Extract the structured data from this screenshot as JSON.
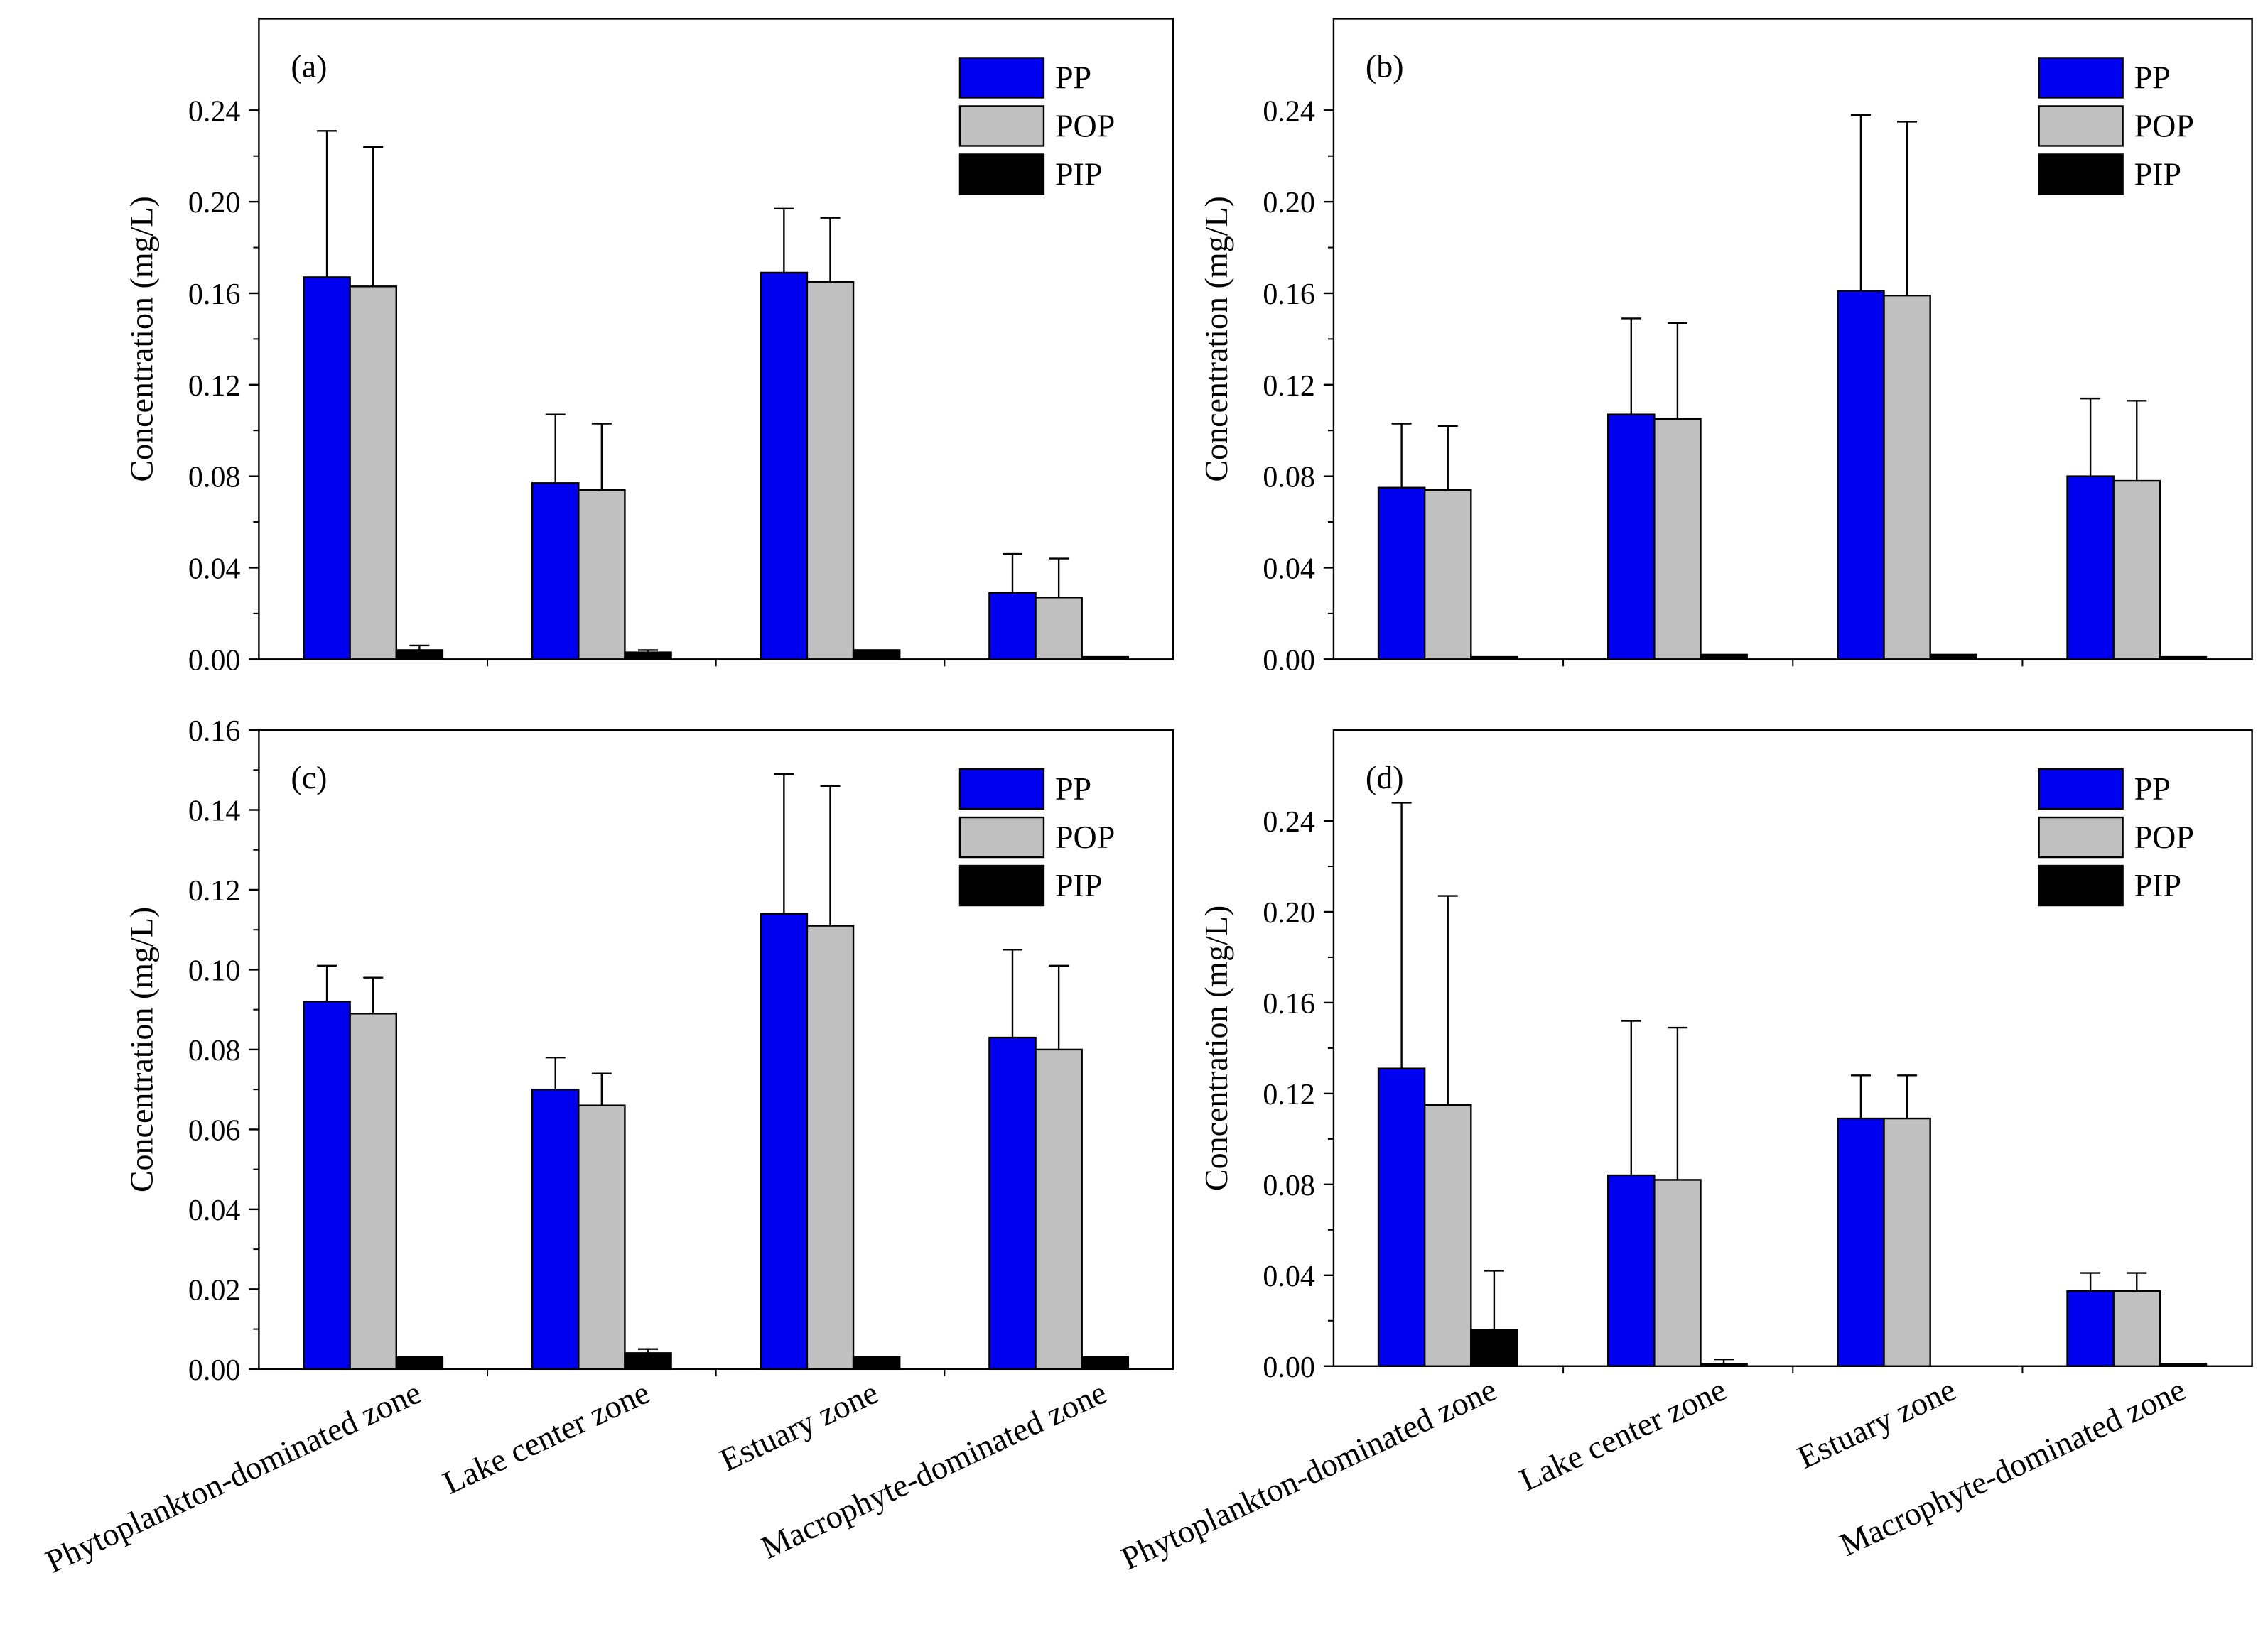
{
  "colors": {
    "PP": "#0000f0",
    "POP": "#c0c0c0",
    "PIP": "#000000",
    "axis": "#000000",
    "background": "#ffffff"
  },
  "chart_data": [
    {
      "type": "bar",
      "panel": "(a)",
      "ylabel": "Concentration (mg/L)",
      "ylim": [
        0,
        0.28
      ],
      "yticks": [
        "0.00",
        "0.04",
        "0.08",
        "0.12",
        "0.16",
        "0.20",
        "0.24"
      ],
      "legend": "top-right",
      "categories": [
        "Phytoplankton-dominated zone",
        "Lake center zone",
        "Estuary zone",
        "Macrophyte-dominated zone"
      ],
      "series": [
        {
          "name": "PP",
          "values": [
            0.167,
            0.077,
            0.169,
            0.029
          ],
          "errors": [
            0.064,
            0.03,
            0.028,
            0.017
          ]
        },
        {
          "name": "POP",
          "values": [
            0.163,
            0.074,
            0.165,
            0.027
          ],
          "errors": [
            0.061,
            0.029,
            0.028,
            0.017
          ]
        },
        {
          "name": "PIP",
          "values": [
            0.004,
            0.003,
            0.004,
            0.001
          ],
          "errors": [
            0.002,
            0.001,
            0.0,
            0.0
          ]
        }
      ]
    },
    {
      "type": "bar",
      "panel": "(b)",
      "ylabel": "Concentration (mg/L)",
      "ylim": [
        0,
        0.28
      ],
      "yticks": [
        "0.00",
        "0.04",
        "0.08",
        "0.12",
        "0.16",
        "0.20",
        "0.24"
      ],
      "legend": "top-right",
      "categories": [
        "Phytoplankton-dominated zone",
        "Lake center zone",
        "Estuary zone",
        "Macrophyte-dominated zone"
      ],
      "series": [
        {
          "name": "PP",
          "values": [
            0.075,
            0.107,
            0.161,
            0.08
          ],
          "errors": [
            0.028,
            0.042,
            0.077,
            0.034
          ]
        },
        {
          "name": "POP",
          "values": [
            0.074,
            0.105,
            0.159,
            0.078
          ],
          "errors": [
            0.028,
            0.042,
            0.076,
            0.035
          ]
        },
        {
          "name": "PIP",
          "values": [
            0.001,
            0.002,
            0.002,
            0.001
          ],
          "errors": [
            0.0,
            0.0,
            0.0,
            0.0
          ]
        }
      ]
    },
    {
      "type": "bar",
      "panel": "(c)",
      "ylabel": "Concentration (mg/L)",
      "ylim": [
        0,
        0.16
      ],
      "yticks": [
        "0.00",
        "0.02",
        "0.04",
        "0.06",
        "0.08",
        "0.10",
        "0.12",
        "0.14",
        "0.16"
      ],
      "legend": "top-right",
      "categories": [
        "Phytoplankton-dominated zone",
        "Lake center zone",
        "Estuary zone",
        "Macrophyte-dominated zone"
      ],
      "series": [
        {
          "name": "PP",
          "values": [
            0.092,
            0.07,
            0.114,
            0.083
          ],
          "errors": [
            0.009,
            0.008,
            0.035,
            0.022
          ]
        },
        {
          "name": "POP",
          "values": [
            0.089,
            0.066,
            0.111,
            0.08
          ],
          "errors": [
            0.009,
            0.008,
            0.035,
            0.021
          ]
        },
        {
          "name": "PIP",
          "values": [
            0.003,
            0.004,
            0.003,
            0.003
          ],
          "errors": [
            0.0,
            0.001,
            0.0,
            0.0
          ]
        }
      ]
    },
    {
      "type": "bar",
      "panel": "(d)",
      "ylabel": "Concentration (mg/L)",
      "ylim": [
        0,
        0.28
      ],
      "yticks": [
        "0.00",
        "0.04",
        "0.08",
        "0.12",
        "0.16",
        "0.20",
        "0.24"
      ],
      "legend": "top-right",
      "categories": [
        "Phytoplankton-dominated zone",
        "Lake center zone",
        "Estuary zone",
        "Macrophyte-dominated zone"
      ],
      "series": [
        {
          "name": "PP",
          "values": [
            0.131,
            0.084,
            0.109,
            0.033
          ],
          "errors": [
            0.117,
            0.068,
            0.019,
            0.008
          ]
        },
        {
          "name": "POP",
          "values": [
            0.115,
            0.082,
            0.109,
            0.033
          ],
          "errors": [
            0.092,
            0.067,
            0.019,
            0.008
          ]
        },
        {
          "name": "PIP",
          "values": [
            0.016,
            0.001,
            0.0,
            0.001
          ],
          "errors": [
            0.026,
            0.002,
            0.0,
            0.0
          ]
        }
      ]
    }
  ]
}
